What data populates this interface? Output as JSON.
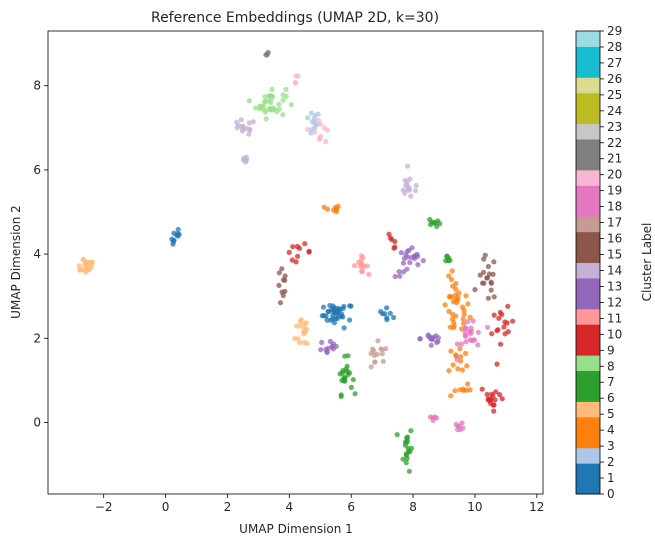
{
  "chart_data": {
    "type": "scatter",
    "title": "Reference Embeddings (UMAP 2D, k=30)",
    "xlabel": "UMAP Dimension 1",
    "ylabel": "UMAP Dimension 2",
    "xlim": [
      -3.8,
      12.2
    ],
    "ylim": [
      -1.7,
      9.3
    ],
    "x_ticks": [
      -2,
      0,
      2,
      4,
      6,
      8,
      10,
      12
    ],
    "y_ticks": [
      0,
      2,
      4,
      6,
      8
    ],
    "grid": false,
    "colorbar": {
      "label": "Cluster Label",
      "range": [
        0,
        29
      ],
      "ticks": [
        0,
        1,
        2,
        3,
        4,
        5,
        6,
        7,
        8,
        9,
        10,
        11,
        12,
        13,
        14,
        15,
        16,
        17,
        18,
        19,
        20,
        21,
        22,
        23,
        24,
        25,
        26,
        27,
        28,
        29
      ],
      "colors": [
        "#1f77b4",
        "#aec7e8",
        "#ff7f0e",
        "#ffbb78",
        "#2ca02c",
        "#98df8a",
        "#d62728",
        "#ff9896",
        "#9467bd",
        "#c5b0d5",
        "#8c564b",
        "#c49c94",
        "#e377c2",
        "#f7b6d2",
        "#7f7f7f",
        "#c7c7c7",
        "#bcbd22",
        "#dbdb8d",
        "#17becf",
        "#9edae5"
      ]
    },
    "clusters": [
      {
        "label": 0,
        "center": [
          5.5,
          2.6
        ],
        "spread": [
          0.35,
          0.2
        ],
        "count": 18
      },
      {
        "label": 0,
        "center": [
          7.2,
          2.6
        ],
        "spread": [
          0.25,
          0.1
        ],
        "count": 8
      },
      {
        "label": 0,
        "center": [
          0.35,
          4.4
        ],
        "spread": [
          0.15,
          0.2
        ],
        "count": 10
      },
      {
        "label": 1,
        "center": [
          5.6,
          2.55
        ],
        "spread": [
          0.4,
          0.25
        ],
        "count": 18
      },
      {
        "label": 2,
        "center": [
          4.7,
          7.1
        ],
        "spread": [
          0.25,
          0.25
        ],
        "count": 12
      },
      {
        "label": 3,
        "center": [
          9.4,
          2.7
        ],
        "spread": [
          0.35,
          0.6
        ],
        "count": 34
      },
      {
        "label": 3,
        "center": [
          9.5,
          1.5
        ],
        "spread": [
          0.3,
          0.3
        ],
        "count": 12
      },
      {
        "label": 3,
        "center": [
          9.5,
          0.8
        ],
        "spread": [
          0.3,
          0.2
        ],
        "count": 8
      },
      {
        "label": 4,
        "center": [
          5.4,
          5.05
        ],
        "spread": [
          0.2,
          0.1
        ],
        "count": 8
      },
      {
        "label": 5,
        "center": [
          -2.6,
          3.75
        ],
        "spread": [
          0.3,
          0.18
        ],
        "count": 22
      },
      {
        "label": 5,
        "center": [
          4.5,
          2.2
        ],
        "spread": [
          0.25,
          0.4
        ],
        "count": 16
      },
      {
        "label": 6,
        "center": [
          7.8,
          -0.6
        ],
        "spread": [
          0.15,
          0.45
        ],
        "count": 18
      },
      {
        "label": 7,
        "center": [
          5.8,
          1.1
        ],
        "spread": [
          0.2,
          0.35
        ],
        "count": 20
      },
      {
        "label": 7,
        "center": [
          8.7,
          4.75
        ],
        "spread": [
          0.15,
          0.1
        ],
        "count": 8
      },
      {
        "label": 7,
        "center": [
          9.1,
          3.9
        ],
        "spread": [
          0.2,
          0.1
        ],
        "count": 6
      },
      {
        "label": 8,
        "center": [
          3.4,
          7.6
        ],
        "spread": [
          0.4,
          0.3
        ],
        "count": 35
      },
      {
        "label": 9,
        "center": [
          10.9,
          2.2
        ],
        "spread": [
          0.3,
          0.4
        ],
        "count": 16
      },
      {
        "label": 9,
        "center": [
          10.6,
          0.6
        ],
        "spread": [
          0.35,
          0.25
        ],
        "count": 16
      },
      {
        "label": 10,
        "center": [
          4.3,
          4.05
        ],
        "spread": [
          0.35,
          0.15
        ],
        "count": 10
      },
      {
        "label": 10,
        "center": [
          7.3,
          4.3
        ],
        "spread": [
          0.2,
          0.15
        ],
        "count": 6
      },
      {
        "label": 11,
        "center": [
          6.3,
          3.75
        ],
        "spread": [
          0.2,
          0.15
        ],
        "count": 14
      },
      {
        "label": 12,
        "center": [
          7.9,
          3.8
        ],
        "spread": [
          0.4,
          0.3
        ],
        "count": 22
      },
      {
        "label": 12,
        "center": [
          5.3,
          1.8
        ],
        "spread": [
          0.3,
          0.2
        ],
        "count": 12
      },
      {
        "label": 13,
        "center": [
          8.6,
          2.0
        ],
        "spread": [
          0.3,
          0.25
        ],
        "count": 14
      },
      {
        "label": 14,
        "center": [
          7.9,
          5.6
        ],
        "spread": [
          0.3,
          0.25
        ],
        "count": 14
      },
      {
        "label": 14,
        "center": [
          2.5,
          7.0
        ],
        "spread": [
          0.35,
          0.15
        ],
        "count": 14
      },
      {
        "label": 14,
        "center": [
          2.55,
          6.15
        ],
        "spread": [
          0.08,
          0.2
        ],
        "count": 6
      },
      {
        "label": 15,
        "center": [
          3.8,
          3.2
        ],
        "spread": [
          0.15,
          0.4
        ],
        "count": 10
      },
      {
        "label": 16,
        "center": [
          10.4,
          3.4
        ],
        "spread": [
          0.25,
          0.45
        ],
        "count": 18
      },
      {
        "label": 17,
        "center": [
          6.8,
          1.5
        ],
        "spread": [
          0.35,
          0.3
        ],
        "count": 14
      },
      {
        "label": 18,
        "center": [
          9.9,
          2.1
        ],
        "spread": [
          0.35,
          0.4
        ],
        "count": 22
      },
      {
        "label": 19,
        "center": [
          8.7,
          0.1
        ],
        "spread": [
          0.08,
          0.05
        ],
        "count": 5
      },
      {
        "label": 19,
        "center": [
          9.5,
          -0.1
        ],
        "spread": [
          0.12,
          0.08
        ],
        "count": 7
      },
      {
        "label": 20,
        "center": [
          5.0,
          7.0
        ],
        "spread": [
          0.3,
          0.3
        ],
        "count": 10
      },
      {
        "label": 20,
        "center": [
          4.2,
          8.15
        ],
        "spread": [
          0.1,
          0.1
        ],
        "count": 4
      },
      {
        "label": 21,
        "center": [
          3.3,
          8.75
        ],
        "spread": [
          0.05,
          0.03
        ],
        "count": 4
      }
    ]
  }
}
